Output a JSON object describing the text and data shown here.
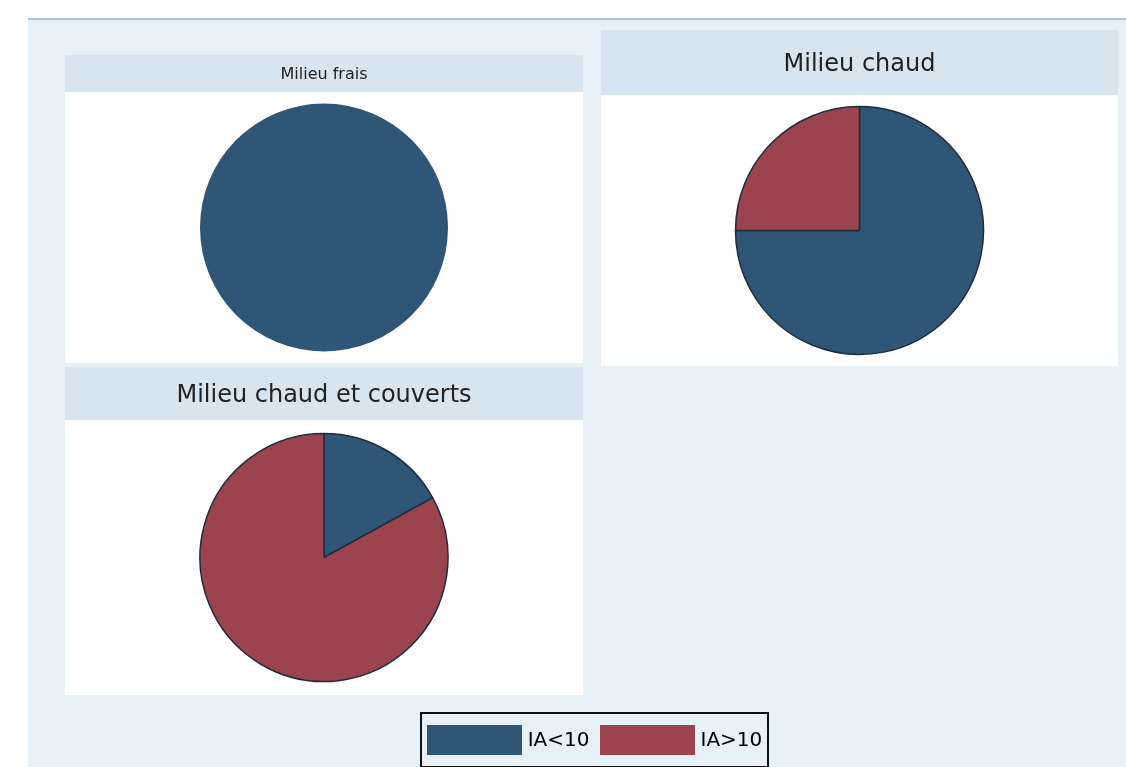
{
  "chart_data": [
    {
      "type": "pie",
      "title": "Milieu frais",
      "categories": [
        "IA<10",
        "IA>10"
      ],
      "values": [
        100,
        0
      ],
      "colors": [
        "#2f5577",
        "#9b434f"
      ],
      "legend": "bottom"
    },
    {
      "type": "pie",
      "title": "Milieu chaud",
      "categories": [
        null,
        null
      ],
      "values": [
        75,
        25
      ],
      "colors": [
        "#2f5577",
        "#9b434f"
      ]
    },
    {
      "type": "pie",
      "title": "Milieu chaud et couverts",
      "categories": [
        null,
        null
      ],
      "values": [
        17,
        83
      ],
      "colors": [
        "#2f5577",
        "#9b434f"
      ]
    }
  ]
}
